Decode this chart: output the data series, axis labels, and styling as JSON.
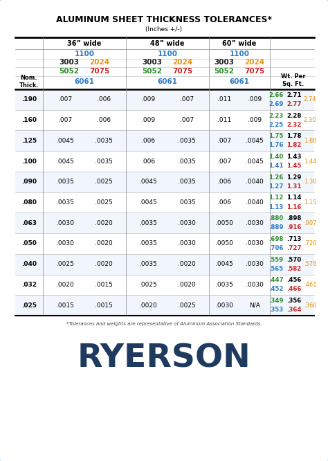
{
  "title": "ALUMINUM SHEET THICKNESS TOLERANCES*",
  "subtitle": "(Inches +/-)",
  "footnote": "*Tolerances and weights are representative of Aluminum Association Standards.",
  "brand": "RYERSON",
  "bg_color": "#ddeef8",
  "card_color": "#ffffff",
  "color_blue": "#2B7BC8",
  "color_orange": "#E8920A",
  "color_green": "#2E8B2E",
  "color_red": "#CC2222",
  "color_black": "#1a1a1a",
  "color_wt_green": "#2E8B2E",
  "color_wt_red": "#CC2222",
  "color_wt_orange": "#E8920A",
  "ryerson_color": "#1e3a5f",
  "data_rows": [
    {
      "thick": ".190",
      "tols": [
        ".007",
        ".006",
        ".009",
        ".007",
        ".011",
        ".009"
      ],
      "wt_top": [
        "2.66",
        "2.71"
      ],
      "wt_bot": [
        "2.69",
        "2.77"
      ],
      "wt_last": "2.74"
    },
    {
      "thick": ".160",
      "tols": [
        ".007",
        ".006",
        ".009",
        ".007",
        ".011",
        ".009"
      ],
      "wt_top": [
        "2.23",
        "2.28"
      ],
      "wt_bot": [
        "2.25",
        "2.32"
      ],
      "wt_last": "2.30"
    },
    {
      "thick": ".125",
      "tols": [
        ".0045",
        ".0035",
        ".006",
        ".0035",
        ".007",
        ".0045"
      ],
      "wt_top": [
        "1.75",
        "1.78"
      ],
      "wt_bot": [
        "1.76",
        "1.82"
      ],
      "wt_last": "1.80"
    },
    {
      "thick": ".100",
      "tols": [
        ".0045",
        ".0035",
        ".006",
        ".0035",
        ".007",
        ".0045"
      ],
      "wt_top": [
        "1.40",
        "1.43"
      ],
      "wt_bot": [
        "1.41",
        "1.45"
      ],
      "wt_last": "1.44"
    },
    {
      "thick": ".090",
      "tols": [
        ".0035",
        ".0025",
        ".0045",
        ".0035",
        ".006",
        ".0040"
      ],
      "wt_top": [
        "1.26",
        "1.29"
      ],
      "wt_bot": [
        "1.27",
        "1.31"
      ],
      "wt_last": "1.30"
    },
    {
      "thick": ".080",
      "tols": [
        ".0035",
        ".0025",
        ".0045",
        ".0035",
        ".006",
        ".0040"
      ],
      "wt_top": [
        "1.12",
        "1.14"
      ],
      "wt_bot": [
        "1.13",
        "1.16"
      ],
      "wt_last": "1.15"
    },
    {
      "thick": ".063",
      "tols": [
        ".0030",
        ".0020",
        ".0035",
        ".0030",
        ".0050",
        ".0030"
      ],
      "wt_top": [
        ".880",
        ".898"
      ],
      "wt_bot": [
        ".889",
        ".916"
      ],
      "wt_last": ".907"
    },
    {
      "thick": ".050",
      "tols": [
        ".0030",
        ".0020",
        ".0035",
        ".0030",
        ".0050",
        ".0030"
      ],
      "wt_top": [
        ".698",
        ".713"
      ],
      "wt_bot": [
        ".706",
        ".727"
      ],
      "wt_last": ".720"
    },
    {
      "thick": ".040",
      "tols": [
        ".0025",
        ".0020",
        ".0035",
        ".0020",
        ".0045",
        ".0030"
      ],
      "wt_top": [
        ".559",
        ".570"
      ],
      "wt_bot": [
        ".565",
        ".582"
      ],
      "wt_last": ".576"
    },
    {
      "thick": ".032",
      "tols": [
        ".0020",
        ".0015",
        ".0025",
        ".0020",
        ".0035",
        ".0030"
      ],
      "wt_top": [
        ".447",
        ".456"
      ],
      "wt_bot": [
        ".452",
        ".466"
      ],
      "wt_last": ".461"
    },
    {
      "thick": ".025",
      "tols": [
        ".0015",
        ".0015",
        ".0020",
        ".0025",
        ".0030",
        "N/A"
      ],
      "wt_top": [
        ".349",
        ".356"
      ],
      "wt_bot": [
        ".353",
        ".364"
      ],
      "wt_last": ".360"
    }
  ]
}
